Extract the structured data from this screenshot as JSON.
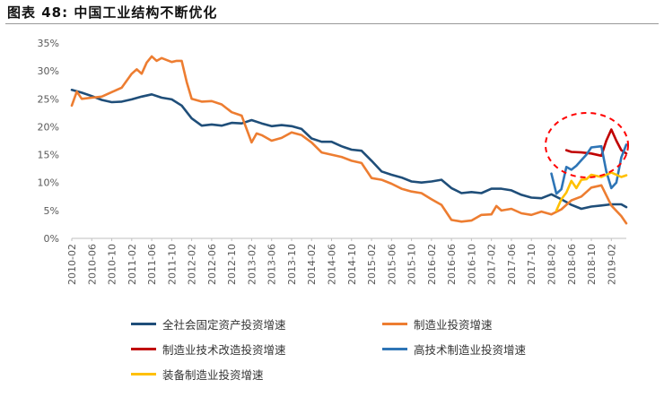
{
  "figure": {
    "title": "图表 48:   中国工业结构不断优化"
  },
  "chart_data": {
    "type": "line",
    "title": "图表 48:   中国工业结构不断优化",
    "xlabel": "",
    "ylabel": "",
    "ylim": [
      0,
      35
    ],
    "yticks": [
      "0%",
      "5%",
      "10%",
      "15%",
      "20%",
      "25%",
      "30%",
      "35%"
    ],
    "xticks": [
      "2010-02",
      "2010-06",
      "2010-10",
      "2011-02",
      "2011-06",
      "2011-10",
      "2012-02",
      "2012-06",
      "2012-10",
      "2013-02",
      "2013-06",
      "2013-10",
      "2014-02",
      "2014-06",
      "2014-10",
      "2015-02",
      "2015-06",
      "2015-10",
      "2016-02",
      "2016-06",
      "2016-10",
      "2017-02",
      "2017-06",
      "2017-10",
      "2018-02",
      "2018-06",
      "2018-10",
      "2019-02"
    ],
    "grid": false,
    "legend": "bottom",
    "series": [
      {
        "name": "全社会固定资产投资增速",
        "color": "#1F4E79",
        "points": [
          [
            "2010-02",
            26.6
          ],
          [
            "2010-04",
            26.1
          ],
          [
            "2010-06",
            25.5
          ],
          [
            "2010-08",
            24.8
          ],
          [
            "2010-10",
            24.4
          ],
          [
            "2010-12",
            24.5
          ],
          [
            "2011-02",
            24.9
          ],
          [
            "2011-04",
            25.4
          ],
          [
            "2011-06",
            25.8
          ],
          [
            "2011-08",
            25.2
          ],
          [
            "2011-10",
            24.9
          ],
          [
            "2011-12",
            23.8
          ],
          [
            "2012-02",
            21.5
          ],
          [
            "2012-04",
            20.2
          ],
          [
            "2012-06",
            20.4
          ],
          [
            "2012-08",
            20.2
          ],
          [
            "2012-10",
            20.7
          ],
          [
            "2012-12",
            20.6
          ],
          [
            "2013-02",
            21.2
          ],
          [
            "2013-04",
            20.6
          ],
          [
            "2013-06",
            20.1
          ],
          [
            "2013-08",
            20.3
          ],
          [
            "2013-10",
            20.1
          ],
          [
            "2013-12",
            19.6
          ],
          [
            "2014-02",
            17.9
          ],
          [
            "2014-04",
            17.3
          ],
          [
            "2014-06",
            17.3
          ],
          [
            "2014-08",
            16.5
          ],
          [
            "2014-10",
            15.9
          ],
          [
            "2014-12",
            15.7
          ],
          [
            "2015-02",
            13.9
          ],
          [
            "2015-04",
            12.0
          ],
          [
            "2015-06",
            11.4
          ],
          [
            "2015-08",
            10.9
          ],
          [
            "2015-10",
            10.2
          ],
          [
            "2015-12",
            10.0
          ],
          [
            "2016-02",
            10.2
          ],
          [
            "2016-04",
            10.5
          ],
          [
            "2016-06",
            9.0
          ],
          [
            "2016-08",
            8.1
          ],
          [
            "2016-10",
            8.3
          ],
          [
            "2016-12",
            8.1
          ],
          [
            "2017-02",
            8.9
          ],
          [
            "2017-04",
            8.9
          ],
          [
            "2017-06",
            8.6
          ],
          [
            "2017-08",
            7.8
          ],
          [
            "2017-10",
            7.3
          ],
          [
            "2017-12",
            7.2
          ],
          [
            "2018-02",
            7.9
          ],
          [
            "2018-04",
            7.0
          ],
          [
            "2018-06",
            6.0
          ],
          [
            "2018-08",
            5.3
          ],
          [
            "2018-10",
            5.7
          ],
          [
            "2018-12",
            5.9
          ],
          [
            "2019-02",
            6.1
          ],
          [
            "2019-04",
            6.1
          ],
          [
            "2019-05",
            5.6
          ]
        ]
      },
      {
        "name": "制造业投资增速",
        "color": "#ED7D31",
        "points": [
          [
            "2010-02",
            23.8
          ],
          [
            "2010-03",
            26.3
          ],
          [
            "2010-04",
            25.0
          ],
          [
            "2010-06",
            25.2
          ],
          [
            "2010-08",
            25.4
          ],
          [
            "2010-10",
            26.2
          ],
          [
            "2010-12",
            27.0
          ],
          [
            "2011-02",
            29.5
          ],
          [
            "2011-03",
            30.3
          ],
          [
            "2011-04",
            29.5
          ],
          [
            "2011-05",
            31.5
          ],
          [
            "2011-06",
            32.6
          ],
          [
            "2011-07",
            31.8
          ],
          [
            "2011-08",
            32.3
          ],
          [
            "2011-10",
            31.6
          ],
          [
            "2011-11",
            31.8
          ],
          [
            "2011-12",
            31.8
          ],
          [
            "2012-01",
            28.0
          ],
          [
            "2012-02",
            25.0
          ],
          [
            "2012-04",
            24.5
          ],
          [
            "2012-06",
            24.6
          ],
          [
            "2012-08",
            24.0
          ],
          [
            "2012-10",
            22.6
          ],
          [
            "2012-12",
            22.0
          ],
          [
            "2013-02",
            17.2
          ],
          [
            "2013-03",
            18.8
          ],
          [
            "2013-04",
            18.5
          ],
          [
            "2013-06",
            17.5
          ],
          [
            "2013-08",
            18.0
          ],
          [
            "2013-10",
            19.0
          ],
          [
            "2013-12",
            18.5
          ],
          [
            "2014-02",
            17.2
          ],
          [
            "2014-04",
            15.4
          ],
          [
            "2014-06",
            15.0
          ],
          [
            "2014-08",
            14.6
          ],
          [
            "2014-10",
            13.9
          ],
          [
            "2014-12",
            13.5
          ],
          [
            "2015-02",
            10.8
          ],
          [
            "2015-04",
            10.5
          ],
          [
            "2015-06",
            9.8
          ],
          [
            "2015-08",
            8.9
          ],
          [
            "2015-10",
            8.4
          ],
          [
            "2015-12",
            8.1
          ],
          [
            "2016-02",
            7.0
          ],
          [
            "2016-04",
            6.0
          ],
          [
            "2016-06",
            3.3
          ],
          [
            "2016-08",
            3.0
          ],
          [
            "2016-10",
            3.2
          ],
          [
            "2016-12",
            4.2
          ],
          [
            "2017-02",
            4.3
          ],
          [
            "2017-03",
            5.8
          ],
          [
            "2017-04",
            5.0
          ],
          [
            "2017-06",
            5.3
          ],
          [
            "2017-08",
            4.5
          ],
          [
            "2017-10",
            4.2
          ],
          [
            "2017-12",
            4.8
          ],
          [
            "2018-02",
            4.3
          ],
          [
            "2018-04",
            5.2
          ],
          [
            "2018-06",
            6.8
          ],
          [
            "2018-08",
            7.5
          ],
          [
            "2018-10",
            9.1
          ],
          [
            "2018-12",
            9.5
          ],
          [
            "2019-02",
            5.9
          ],
          [
            "2019-04",
            4.0
          ],
          [
            "2019-05",
            2.7
          ]
        ]
      },
      {
        "name": "制造业技术改造投资增速",
        "color": "#C00000",
        "points": [
          [
            "2018-05",
            15.8
          ],
          [
            "2018-06",
            15.5
          ],
          [
            "2018-08",
            15.4
          ],
          [
            "2018-10",
            15.2
          ],
          [
            "2018-12",
            14.8
          ],
          [
            "2019-01",
            17.5
          ],
          [
            "2019-02",
            19.5
          ],
          [
            "2019-03",
            17.5
          ],
          [
            "2019-04",
            15.8
          ],
          [
            "2019-05",
            15.2
          ]
        ]
      },
      {
        "name": "高技术制造业投资增速",
        "color": "#2E75B6",
        "points": [
          [
            "2018-02",
            11.6
          ],
          [
            "2018-03",
            8.0
          ],
          [
            "2018-04",
            8.8
          ],
          [
            "2018-05",
            12.8
          ],
          [
            "2018-06",
            12.3
          ],
          [
            "2018-07",
            13.0
          ],
          [
            "2018-08",
            14.0
          ],
          [
            "2018-09",
            15.0
          ],
          [
            "2018-10",
            16.3
          ],
          [
            "2018-12",
            16.5
          ],
          [
            "2019-01",
            12.0
          ],
          [
            "2019-02",
            9.0
          ],
          [
            "2019-03",
            10.0
          ],
          [
            "2019-04",
            14.5
          ],
          [
            "2019-05",
            16.8
          ]
        ]
      },
      {
        "name": "装备制造业投资增速",
        "color": "#FFC000",
        "points": [
          [
            "2018-03",
            5.0
          ],
          [
            "2018-04",
            7.0
          ],
          [
            "2018-05",
            8.2
          ],
          [
            "2018-06",
            10.3
          ],
          [
            "2018-07",
            9.0
          ],
          [
            "2018-08",
            10.5
          ],
          [
            "2018-09",
            10.6
          ],
          [
            "2018-10",
            11.4
          ],
          [
            "2018-12",
            11.0
          ],
          [
            "2019-02",
            11.8
          ],
          [
            "2019-04",
            11.0
          ],
          [
            "2019-05",
            11.3
          ]
        ]
      }
    ],
    "annotations": [
      {
        "type": "dashed-ellipse",
        "color": "#FF0000"
      }
    ]
  }
}
